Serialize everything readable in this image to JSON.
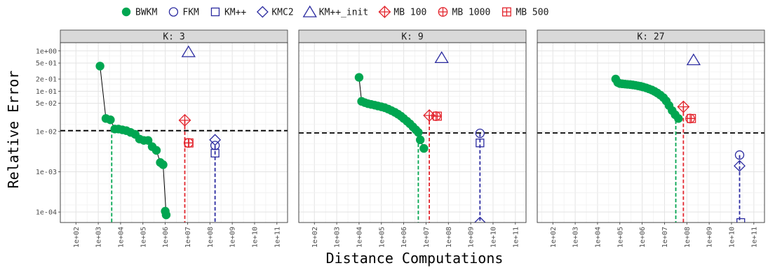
{
  "chart_data": {
    "type": "scatter",
    "xlabel": "Distance Computations",
    "ylabel": "Relative Error",
    "x_scale": "log10",
    "y_scale": "log10",
    "xlim": [
      20,
      300000000000
    ],
    "ylim": [
      5.5e-05,
      1.6
    ],
    "x_ticks": [
      100,
      1000,
      10000,
      100000,
      1000000,
      10000000,
      100000000,
      1000000000,
      10000000000,
      100000000000
    ],
    "x_tick_labels": [
      "1e+02",
      "1e+03",
      "1e+04",
      "1e+05",
      "1e+06",
      "1e+07",
      "1e+08",
      "1e+09",
      "1e+10",
      "1e+11"
    ],
    "y_ticks": [
      0.0001,
      0.001,
      0.01,
      0.05,
      0.1,
      0.2,
      0.5,
      1.0
    ],
    "y_tick_labels": [
      "1e-04",
      "1e-03",
      "1e-02",
      "5e-02",
      "1e-01",
      "2e-01",
      "5e-01",
      "1e+00"
    ],
    "grid": true,
    "legend_position": "top",
    "legend": [
      {
        "name": "BWKM",
        "marker": "filled-circle",
        "color": "#00a651"
      },
      {
        "name": "FKM",
        "marker": "circle",
        "color": "#2b2ba0"
      },
      {
        "name": "KM++",
        "marker": "square",
        "color": "#2b2ba0"
      },
      {
        "name": "KMC2",
        "marker": "diamond",
        "color": "#2b2ba0"
      },
      {
        "name": "KM++_init",
        "marker": "triangle",
        "color": "#2b2ba0"
      },
      {
        "name": "MB 100",
        "marker": "diamond-plus",
        "color": "#e3262e"
      },
      {
        "name": "MB 1000",
        "marker": "circle-plus",
        "color": "#e3262e"
      },
      {
        "name": "MB 500",
        "marker": "square-plus",
        "color": "#e3262e"
      }
    ],
    "colors": {
      "bwkm": "#00a651",
      "km": "#2b2ba0",
      "mb": "#e3262e",
      "bwkm_line": "#000000",
      "hline": "#000000"
    },
    "panels": [
      {
        "title": "K: 3",
        "hline": 0.0105,
        "bwkm": {
          "x": [
            1200,
            2200,
            3500,
            5500,
            8000,
            12000,
            18000,
            28000,
            45000,
            70000,
            110000,
            170000,
            260000,
            400000,
            600000,
            800000,
            1100000
          ],
          "y": [
            0.42,
            0.021,
            0.0195,
            0.0115,
            0.0115,
            0.011,
            0.0105,
            0.0095,
            0.0085,
            0.0065,
            0.006,
            0.006,
            0.0042,
            0.0034,
            0.0017,
            0.0015,
            8.5e-05
          ]
        },
        "extra_points": [
          {
            "series": "BWKM",
            "x": 1000000,
            "y": 0.000105
          }
        ],
        "bwkm_vline_x": 4000,
        "bwkm_vline_top": 0.0115,
        "points": [
          {
            "series": "KM++_init",
            "x": 11000000,
            "y": 0.95
          },
          {
            "series": "MB 100",
            "x": 7500000,
            "y": 0.019
          },
          {
            "series": "MB 1000",
            "x": 11000000,
            "y": 0.0052
          },
          {
            "series": "MB 500",
            "x": 11500000,
            "y": 0.0052
          },
          {
            "series": "KMC2",
            "x": 170000000,
            "y": 0.0062
          },
          {
            "series": "FKM",
            "x": 170000000,
            "y": 0.0045
          },
          {
            "series": "KM++",
            "x": 170000000,
            "y": 0.0029
          }
        ],
        "vlines": [
          {
            "series": "MB 100",
            "x": 7500000,
            "top": 0.019
          },
          {
            "series": "KM++",
            "x": 170000000,
            "top": 0.0045
          }
        ]
      },
      {
        "title": "K: 9",
        "hline": 0.0092,
        "bwkm": {
          "x": [
            10000,
            13000,
            18000,
            25000,
            35000,
            50000,
            70000,
            100000,
            140000,
            200000,
            280000,
            400000,
            550000,
            750000,
            1000000,
            1400000,
            1900000,
            2600000,
            3500000,
            4500000,
            5500000,
            8000000
          ],
          "y": [
            0.22,
            0.056,
            0.052,
            0.049,
            0.047,
            0.045,
            0.043,
            0.041,
            0.039,
            0.036,
            0.033,
            0.03,
            0.027,
            0.024,
            0.021,
            0.018,
            0.0155,
            0.013,
            0.011,
            0.0095,
            0.0062,
            0.0038
          ]
        },
        "bwkm_vline_x": 4500000,
        "bwkm_vline_top": 0.0095,
        "points": [
          {
            "series": "KM++_init",
            "x": 50000000,
            "y": 0.68
          },
          {
            "series": "MB 100",
            "x": 14000000,
            "y": 0.025
          },
          {
            "series": "MB 1000",
            "x": 28000000,
            "y": 0.024
          },
          {
            "series": "MB 500",
            "x": 32000000,
            "y": 0.024
          },
          {
            "series": "FKM",
            "x": 2600000000,
            "y": 0.009
          },
          {
            "series": "KM++",
            "x": 2600000000,
            "y": 0.0052
          },
          {
            "series": "KMC2",
            "x": 2600000000,
            "y": 5.5e-05
          }
        ],
        "vlines": [
          {
            "series": "MB 100",
            "x": 14000000,
            "top": 0.025
          },
          {
            "series": "KM++",
            "x": 2600000000,
            "top": 0.009
          }
        ]
      },
      {
        "title": "K: 27",
        "hline": 0.0092,
        "bwkm": {
          "x": [
            65000,
            80000,
            100000,
            130000,
            170000,
            220000,
            290000,
            380000,
            500000,
            650000,
            850000,
            1100000,
            1500000,
            2000000,
            2700000,
            3600000,
            4800000,
            6500000,
            9000000,
            12000000,
            16000000,
            22000000,
            30000000,
            42000000
          ],
          "y": [
            0.2,
            0.165,
            0.155,
            0.152,
            0.15,
            0.148,
            0.146,
            0.143,
            0.14,
            0.136,
            0.132,
            0.127,
            0.121,
            0.114,
            0.107,
            0.099,
            0.09,
            0.08,
            0.069,
            0.057,
            0.044,
            0.033,
            0.026,
            0.021
          ]
        },
        "bwkm_vline_x": 32000000,
        "bwkm_vline_top": 0.026,
        "points": [
          {
            "series": "KM++_init",
            "x": 200000000,
            "y": 0.6
          },
          {
            "series": "MB 100",
            "x": 70000000,
            "y": 0.041
          },
          {
            "series": "MB 1000",
            "x": 140000000,
            "y": 0.021
          },
          {
            "series": "MB 500",
            "x": 160000000,
            "y": 0.021
          },
          {
            "series": "FKM",
            "x": 23000000000,
            "y": 0.0026
          },
          {
            "series": "KMC2",
            "x": 23000000000,
            "y": 0.0014
          },
          {
            "series": "KM++",
            "x": 26000000000,
            "y": 5.5e-05
          }
        ],
        "vlines": [
          {
            "series": "MB 100",
            "x": 70000000,
            "top": 0.041
          },
          {
            "series": "KM++",
            "x": 23000000000,
            "top": 0.0026
          }
        ]
      }
    ]
  }
}
